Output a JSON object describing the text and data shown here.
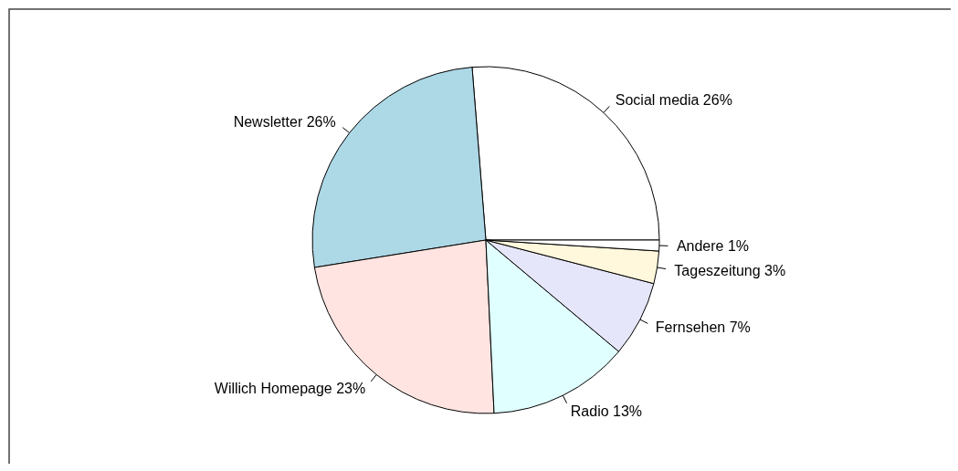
{
  "chart_data": {
    "type": "pie",
    "categories": [
      "Social media",
      "Newsletter",
      "Willich Homepage",
      "Radio",
      "Fernsehen",
      "Tageszeitung",
      "Andere"
    ],
    "values": [
      26,
      26,
      23,
      13,
      7,
      3,
      1
    ],
    "value_labels": [
      "26%",
      "26%",
      "23%",
      "13%",
      "7%",
      "3%",
      "1%"
    ],
    "colors": [
      "#ffffff",
      "#add8e6",
      "#ffe4e1",
      "#e0ffff",
      "#e6e6fa",
      "#fff8dc",
      "#ffffff"
    ]
  }
}
